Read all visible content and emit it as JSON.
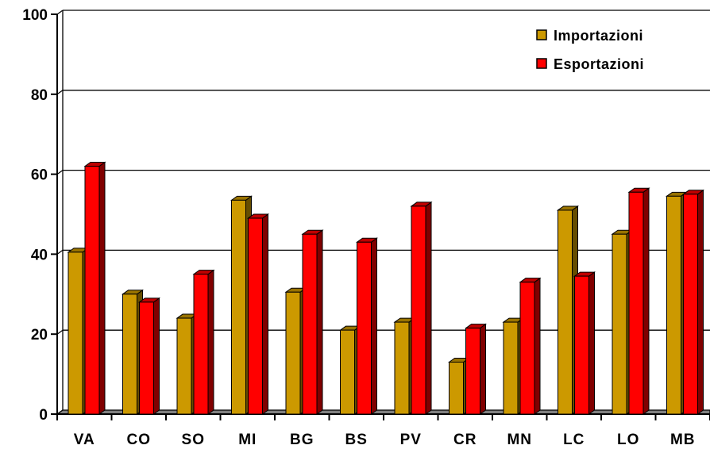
{
  "chart_data": {
    "type": "bar",
    "categories": [
      "VA",
      "CO",
      "SO",
      "MI",
      "BG",
      "BS",
      "PV",
      "CR",
      "MN",
      "LC",
      "LO",
      "MB"
    ],
    "series": [
      {
        "name": "Importazioni",
        "color": "#CC9900",
        "values": [
          40.5,
          30,
          24,
          53.5,
          30.5,
          21,
          23,
          13,
          23,
          51,
          45,
          54.5
        ]
      },
      {
        "name": "Esportazioni",
        "color": "#FF0000",
        "values": [
          62,
          28,
          35,
          49,
          45,
          43,
          52,
          21.5,
          33,
          34.5,
          55.5,
          55
        ]
      }
    ],
    "ylim": [
      0,
      100
    ],
    "yticks": [
      "0",
      "20",
      "40",
      "60",
      "80",
      "100"
    ],
    "grid": true,
    "legend_position": "top-right",
    "style": "3d-columns"
  }
}
